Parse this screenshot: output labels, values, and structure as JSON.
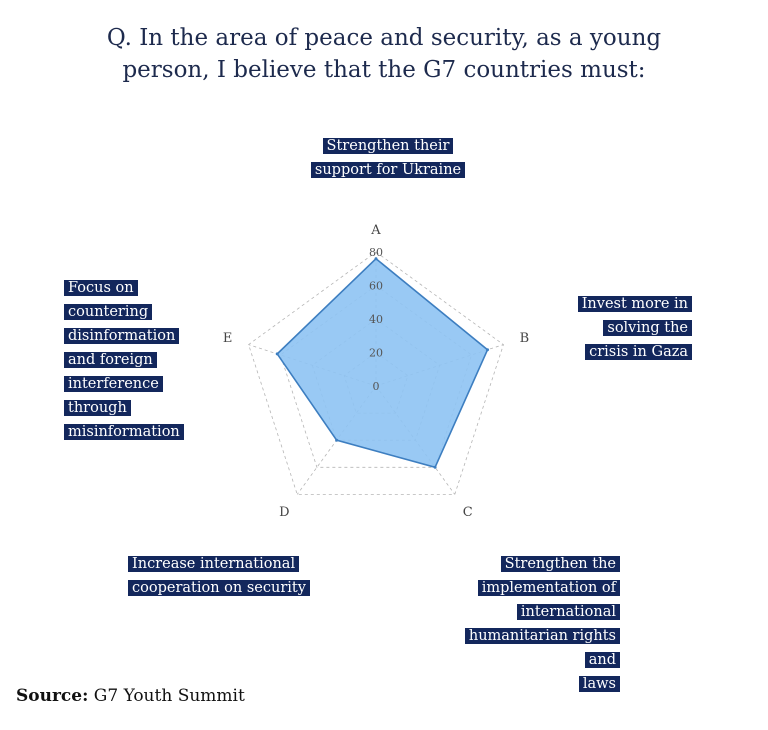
{
  "title": "Q. In the area of peace and security, as a young person, I believe that the G7 countries must:",
  "chart_data": {
    "type": "radar",
    "categories": [
      "A",
      "B",
      "C",
      "D",
      "E"
    ],
    "values": [
      76,
      70,
      60,
      40,
      62
    ],
    "rlim": [
      0,
      80
    ],
    "rticks": [
      0,
      20,
      40,
      60,
      80
    ],
    "grid": true,
    "fill_color": "#8ec3f3",
    "line_color": "#3d7ec0",
    "grid_color": "#b5b5b5"
  },
  "callouts": {
    "A": "Strengthen their support for Ukraine",
    "B": "Invest more in solving the crisis in Gaza",
    "C": "Strengthen the implementation of international humanitarian rights and laws",
    "D": "Increase international cooperation on security",
    "E": "Focus on countering disinformation and foreign interference through misinformation"
  },
  "source": {
    "label": "Source:",
    "text": "G7 Youth Summit"
  },
  "colors": {
    "label_bg": "#13275c",
    "label_text": "#ffffff",
    "title_text": "#1d2a4d"
  }
}
